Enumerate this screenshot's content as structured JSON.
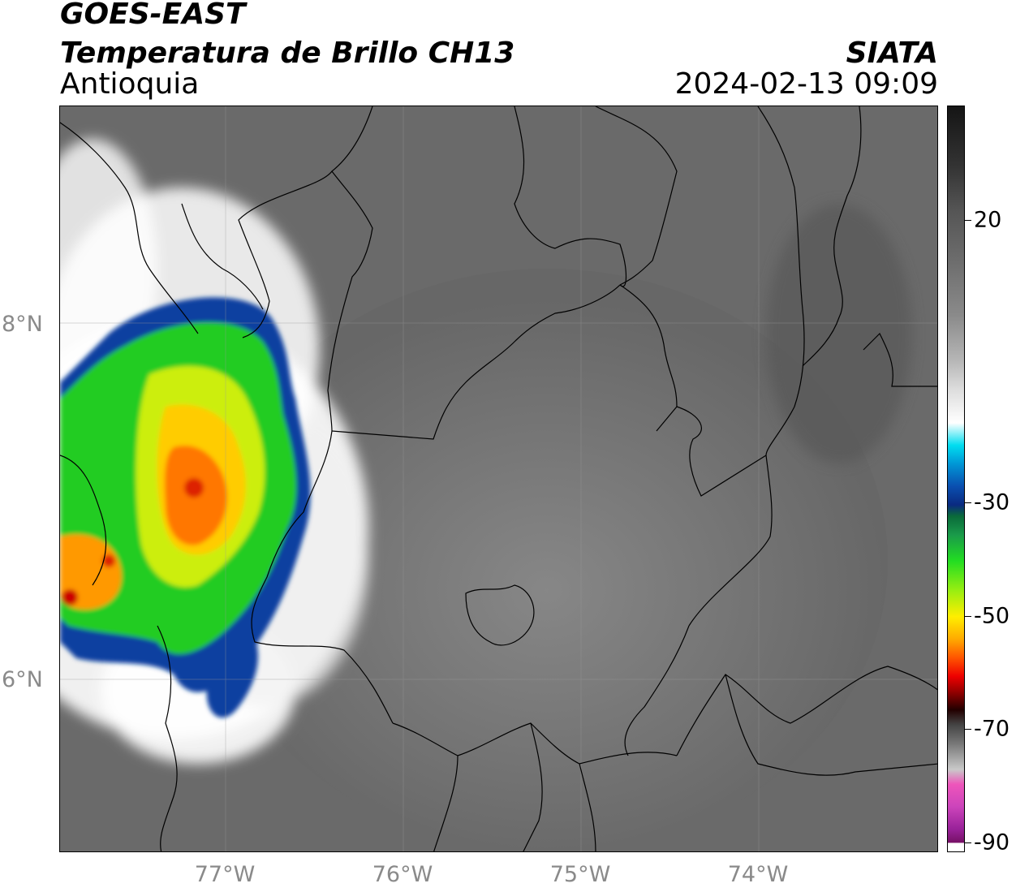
{
  "header": {
    "satellite": "GOES-EAST",
    "product": "Temperatura de Brillo CH13",
    "region": "Antioquia",
    "organization": "SIATA",
    "datetime": "2024-02-13 09:09"
  },
  "map": {
    "lat_range": [
      5.0,
      9.2
    ],
    "lon_range": [
      -77.95,
      -73.0
    ],
    "lat_ticks": [
      {
        "value": 8,
        "label": "8°N"
      },
      {
        "value": 6,
        "label": "6°N"
      }
    ],
    "lon_ticks": [
      {
        "value": -77,
        "label": "77°W"
      },
      {
        "value": -76,
        "label": "76°W"
      },
      {
        "value": -75,
        "label": "75°W"
      },
      {
        "value": -74,
        "label": "74°W"
      }
    ],
    "gridlines": true,
    "colors": {
      "background_gray": "#6e6e6e",
      "storm_blue": "#0a3fa0",
      "storm_green": "#22cc22",
      "storm_yellow": "#ffee00",
      "storm_orange": "#ff7700",
      "storm_red": "#dd0000"
    }
  },
  "colorbar": {
    "range": [
      -90,
      40
    ],
    "ticks": [
      {
        "value": 20,
        "label": "20"
      },
      {
        "value": -30,
        "label": "-30"
      },
      {
        "value": -50,
        "label": "-50"
      },
      {
        "value": -70,
        "label": "-70"
      },
      {
        "value": -90,
        "label": "-90"
      }
    ]
  }
}
